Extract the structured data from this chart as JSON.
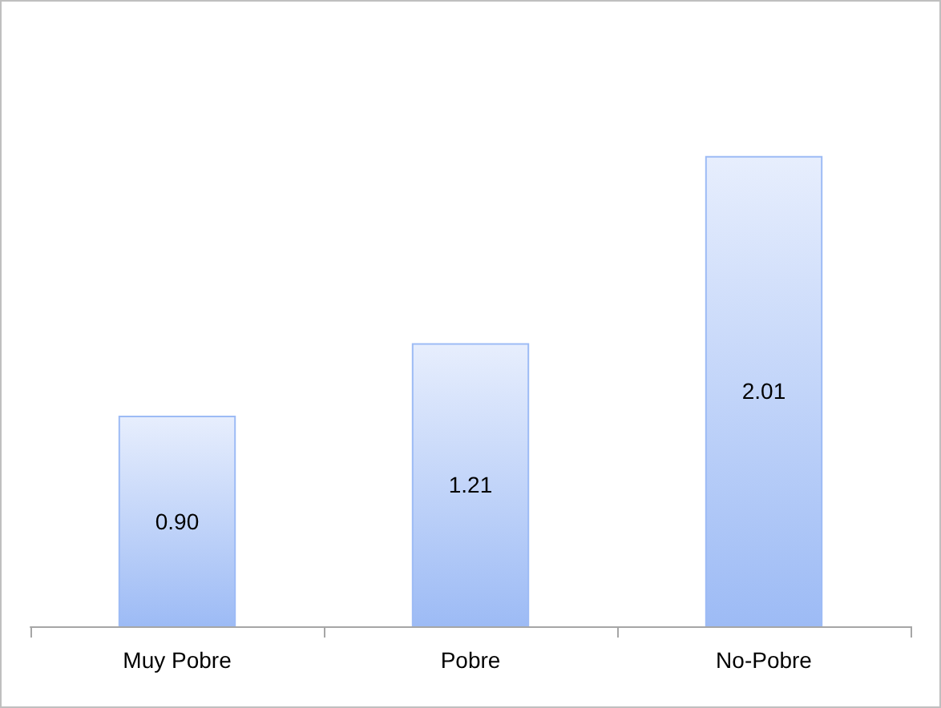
{
  "chart_data": {
    "type": "bar",
    "categories": [
      "Muy Pobre",
      "Pobre",
      "No-Pobre"
    ],
    "values": [
      0.9,
      1.21,
      2.01
    ],
    "value_labels": [
      "0.90",
      "1.21",
      "2.01"
    ],
    "color": "#9dbbf5"
  }
}
